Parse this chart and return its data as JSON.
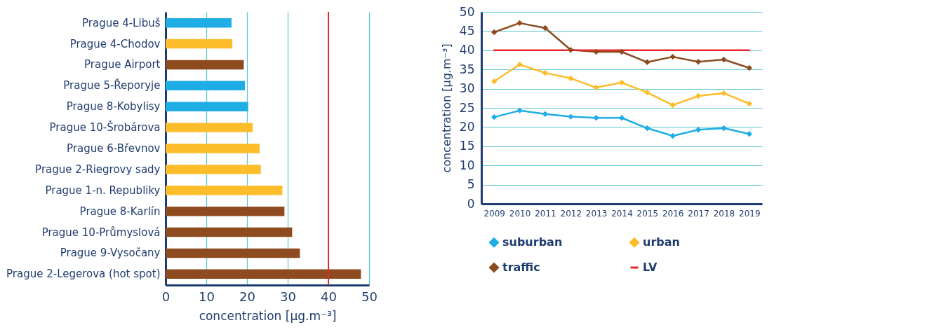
{
  "chart_data": [
    {
      "type": "bar",
      "orientation": "horizontal",
      "xlabel": "concentration [µg.m⁻³]",
      "categories": [
        "Prague 4-Libuš",
        "Prague 4-Chodov",
        "Prague Airport",
        "Prague 5-Řeporyje",
        "Prague 8-Kobylisy",
        "Prague 10-Šrobárova",
        "Prague 6-Břevnov",
        "Prague 2-Riegrovy sady",
        "Prague 1-n. Republiky",
        "Prague 8-Karlín",
        "Prague 10-Průmyslová",
        "Prague 9-Vysočany",
        "Prague 2-Legerova (hot spot)"
      ],
      "values": [
        16.2,
        16.4,
        19.2,
        19.5,
        20.3,
        21.4,
        23.1,
        23.4,
        28.7,
        29.2,
        31.1,
        33.0,
        48.0
      ],
      "colors": [
        "#1eaee5",
        "#fdbd2a",
        "#8e4b1f",
        "#1eaee5",
        "#1eaee5",
        "#fdbd2a",
        "#fdbd2a",
        "#fdbd2a",
        "#fdbd2a",
        "#8e4b1f",
        "#8e4b1f",
        "#8e4b1f",
        "#8e4b1f"
      ],
      "xlim": [
        0,
        50
      ],
      "xticks": [
        0,
        10,
        20,
        30,
        40,
        50
      ],
      "grid": "x",
      "ref_lines": [
        {
          "axis": "x",
          "value": 40,
          "color": "#e8262b"
        }
      ]
    },
    {
      "type": "line",
      "ylabel": "concentration [µg.m⁻³]",
      "categories": [
        "2009",
        "2010",
        "2011",
        "2012",
        "2013",
        "2014",
        "2015",
        "2016",
        "2017",
        "2018",
        "2019"
      ],
      "series": [
        {
          "name": "suburban",
          "color": "#1eaee5",
          "marker": "diamond",
          "values": [
            22.6,
            24.3,
            23.4,
            22.7,
            22.4,
            22.4,
            19.7,
            17.7,
            19.3,
            19.7,
            18.2
          ]
        },
        {
          "name": "urban",
          "color": "#fdbd2a",
          "marker": "diamond",
          "values": [
            31.9,
            36.3,
            34.1,
            32.7,
            30.3,
            31.6,
            29.0,
            25.7,
            28.1,
            28.8,
            26.1
          ]
        },
        {
          "name": "traffic",
          "color": "#8e4b1f",
          "marker": "diamond",
          "values": [
            44.7,
            47.1,
            45.8,
            40.1,
            39.6,
            39.6,
            36.9,
            38.3,
            37.0,
            37.6,
            35.4
          ]
        },
        {
          "name": "LV",
          "color": "#e8262b",
          "marker": "none",
          "values": [
            40,
            40,
            40,
            40,
            40,
            40,
            40,
            40,
            40,
            40,
            40
          ]
        }
      ],
      "ylim": [
        0,
        50
      ],
      "yticks": [
        0,
        5,
        10,
        15,
        20,
        25,
        30,
        35,
        40,
        45,
        50
      ],
      "grid": "y",
      "legend": "bottom"
    }
  ]
}
